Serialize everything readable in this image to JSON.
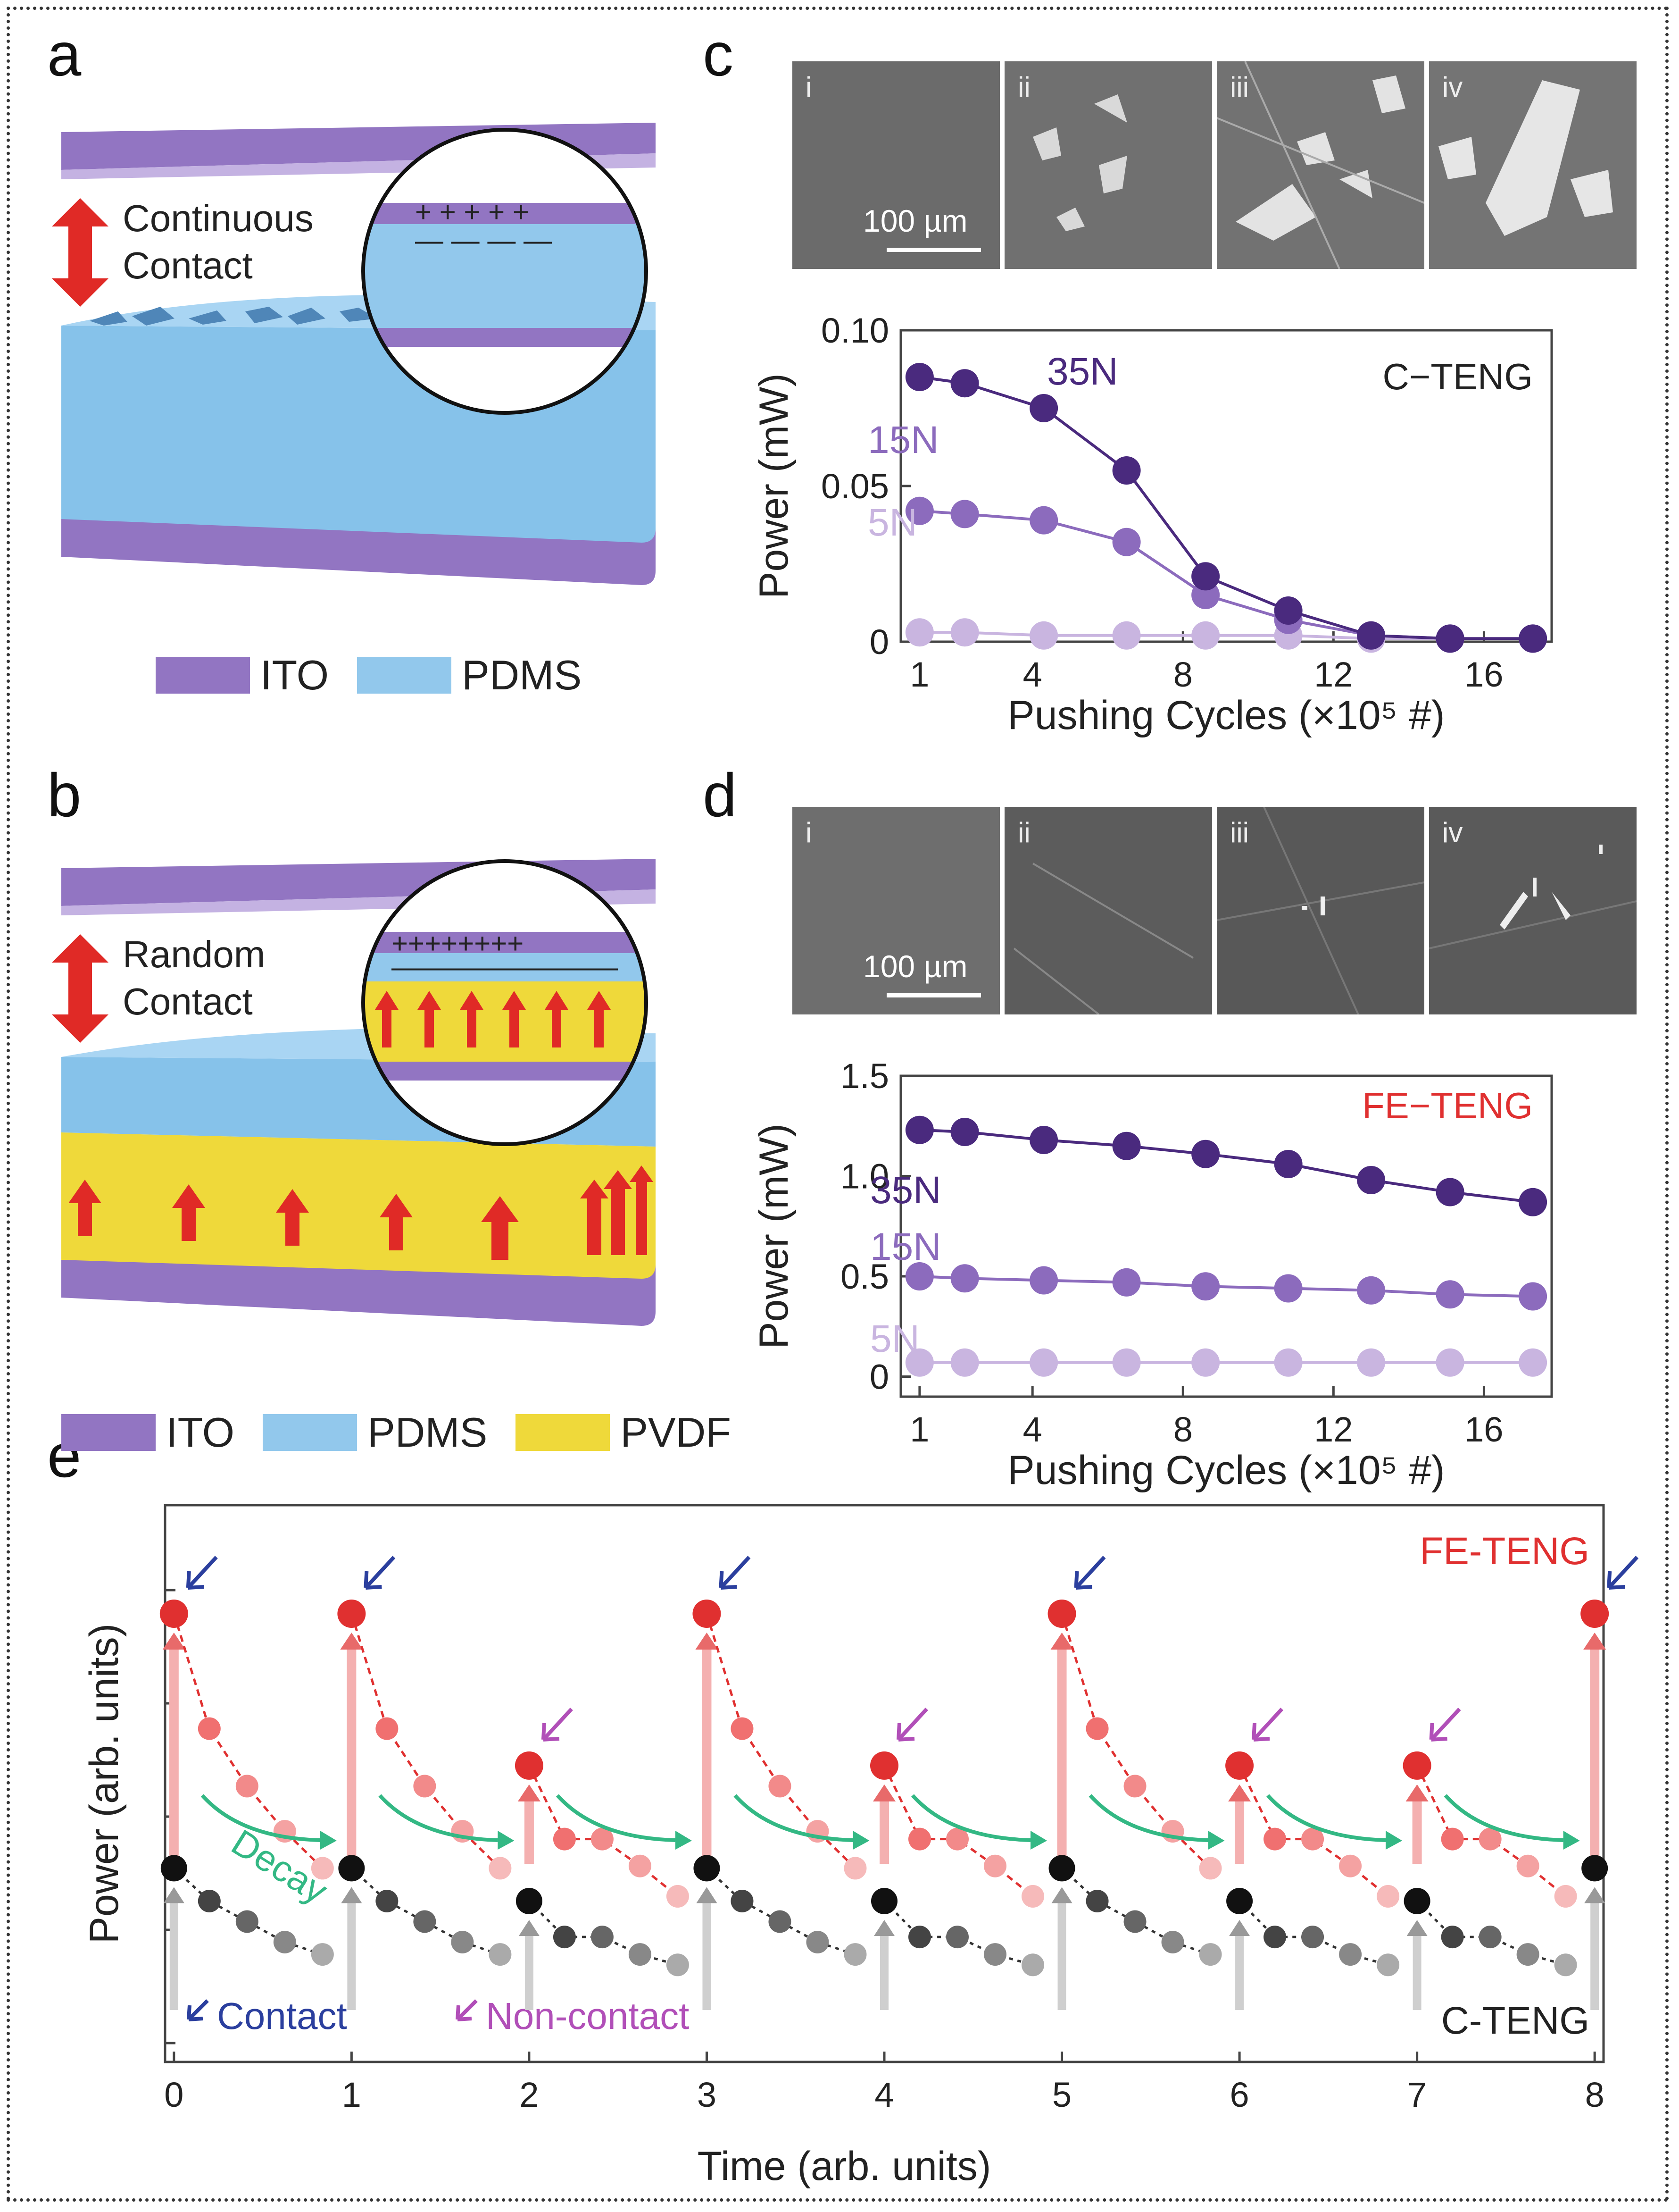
{
  "panels": {
    "a": "a",
    "b": "b",
    "c": "c",
    "d": "d",
    "e": "e"
  },
  "colors": {
    "ito": "#9275c2",
    "pdms": "#92c8ec",
    "pvdf": "#efd93a",
    "arrow": "#e02a26",
    "n35": "#4a2a7e",
    "n15": "#8c6bbd",
    "n5": "#c9b5e0",
    "fe": "#e03030",
    "cteng": "#111111",
    "decay": "#33b884",
    "contact": "#2b3f9e",
    "noncontact": "#b14fb8"
  },
  "panel_a": {
    "motion_label_line1": "Continuous",
    "motion_label_line2": "Contact",
    "legend": [
      {
        "label": "ITO",
        "color": "#9275c2"
      },
      {
        "label": "PDMS",
        "color": "#92c8ec"
      }
    ]
  },
  "panel_b": {
    "motion_label_line1": "Random",
    "motion_label_line2": "Contact",
    "legend": [
      {
        "label": "ITO",
        "color": "#9275c2"
      },
      {
        "label": "PDMS",
        "color": "#92c8ec"
      },
      {
        "label": "PVDF",
        "color": "#efd93a"
      }
    ]
  },
  "sem_c": {
    "labels": [
      "i",
      "ii",
      "iii",
      "iv"
    ],
    "scale_bar": "100 µm"
  },
  "sem_d": {
    "labels": [
      "i",
      "ii",
      "iii",
      "iv"
    ],
    "scale_bar": "100 µm"
  },
  "chart_data": [
    {
      "id": "c",
      "type": "line",
      "title": "C−TENG",
      "xlabel": "Pushing Cycles (×10⁵ #)",
      "ylabel": "Power (mW)",
      "xlim": [
        0.5,
        17.8
      ],
      "ylim": [
        0,
        0.1
      ],
      "xticks": [
        1,
        4,
        8,
        12,
        16
      ],
      "yticks": [
        0,
        0.05,
        0.1
      ],
      "ytick_labels": [
        "0",
        "0.05",
        "0.10"
      ],
      "x": [
        1,
        2.2,
        4.3,
        6.5,
        8.6,
        10.8,
        13,
        15.1,
        17.3
      ],
      "series": [
        {
          "name": "35N",
          "values": [
            0.085,
            0.083,
            0.075,
            0.055,
            0.021,
            0.01,
            0.002,
            0.001,
            0.001
          ],
          "color": "#4a2a7e"
        },
        {
          "name": "15N",
          "values": [
            0.042,
            0.041,
            0.039,
            0.032,
            0.015,
            0.007,
            0.002,
            0.001,
            0.001
          ],
          "color": "#8c6bbd"
        },
        {
          "name": "5N",
          "values": [
            0.003,
            0.003,
            0.002,
            0.002,
            0.002,
            0.002,
            0.001,
            0.001,
            0.001
          ],
          "color": "#c9b5e0"
        }
      ]
    },
    {
      "id": "d",
      "type": "line",
      "title": "FE−TENG",
      "xlabel": "Pushing Cycles (×10⁵ #)",
      "ylabel": "Power (mW)",
      "xlim": [
        0.5,
        17.8
      ],
      "ylim": [
        -0.1,
        1.5
      ],
      "xticks": [
        1,
        4,
        8,
        12,
        16
      ],
      "yticks": [
        0,
        0.5,
        1,
        1.5
      ],
      "ytick_labels": [
        "0",
        "0.5",
        "1.0",
        "1.5"
      ],
      "x": [
        1,
        2.2,
        4.3,
        6.5,
        8.6,
        10.8,
        13,
        15.1,
        17.3
      ],
      "series": [
        {
          "name": "35N",
          "values": [
            1.23,
            1.22,
            1.18,
            1.15,
            1.11,
            1.06,
            0.98,
            0.92,
            0.87
          ],
          "color": "#4a2a7e"
        },
        {
          "name": "15N",
          "values": [
            0.5,
            0.49,
            0.48,
            0.47,
            0.45,
            0.44,
            0.43,
            0.41,
            0.4
          ],
          "color": "#8c6bbd"
        },
        {
          "name": "5N",
          "values": [
            0.07,
            0.07,
            0.07,
            0.07,
            0.07,
            0.07,
            0.07,
            0.07,
            0.07
          ],
          "color": "#c9b5e0"
        }
      ]
    },
    {
      "id": "e",
      "type": "scatter",
      "xlabel": "Time (arb. units)",
      "ylabel": "Power (arb. units)",
      "xlim": [
        -0.05,
        8.05
      ],
      "xticks": [
        0,
        1,
        2,
        3,
        4,
        5,
        6,
        7,
        8
      ],
      "fe_label": "FE-TENG",
      "cteng_label": "C-TENG",
      "decay_label": "Decay",
      "legend": [
        {
          "label": "Contact",
          "color": "#2b3f9e"
        },
        {
          "label": "Non-contact",
          "color": "#b14fb8"
        }
      ],
      "event_types": [
        "contact",
        "contact",
        "noncontact",
        "contact",
        "noncontact",
        "contact",
        "noncontact",
        "noncontact",
        "contact"
      ],
      "fe_peak": [
        1.0,
        1.0,
        0.63,
        1.0,
        0.63,
        1.0,
        0.63,
        0.63,
        1.0
      ],
      "fe_decay": [
        0.72,
        0.58,
        0.47,
        0.38
      ],
      "ct_peak": [
        0.38,
        0.38,
        0.3,
        0.38,
        0.3,
        0.38,
        0.3,
        0.3,
        0.38
      ],
      "ct_decay": [
        0.3,
        0.25,
        0.2,
        0.17
      ]
    }
  ]
}
